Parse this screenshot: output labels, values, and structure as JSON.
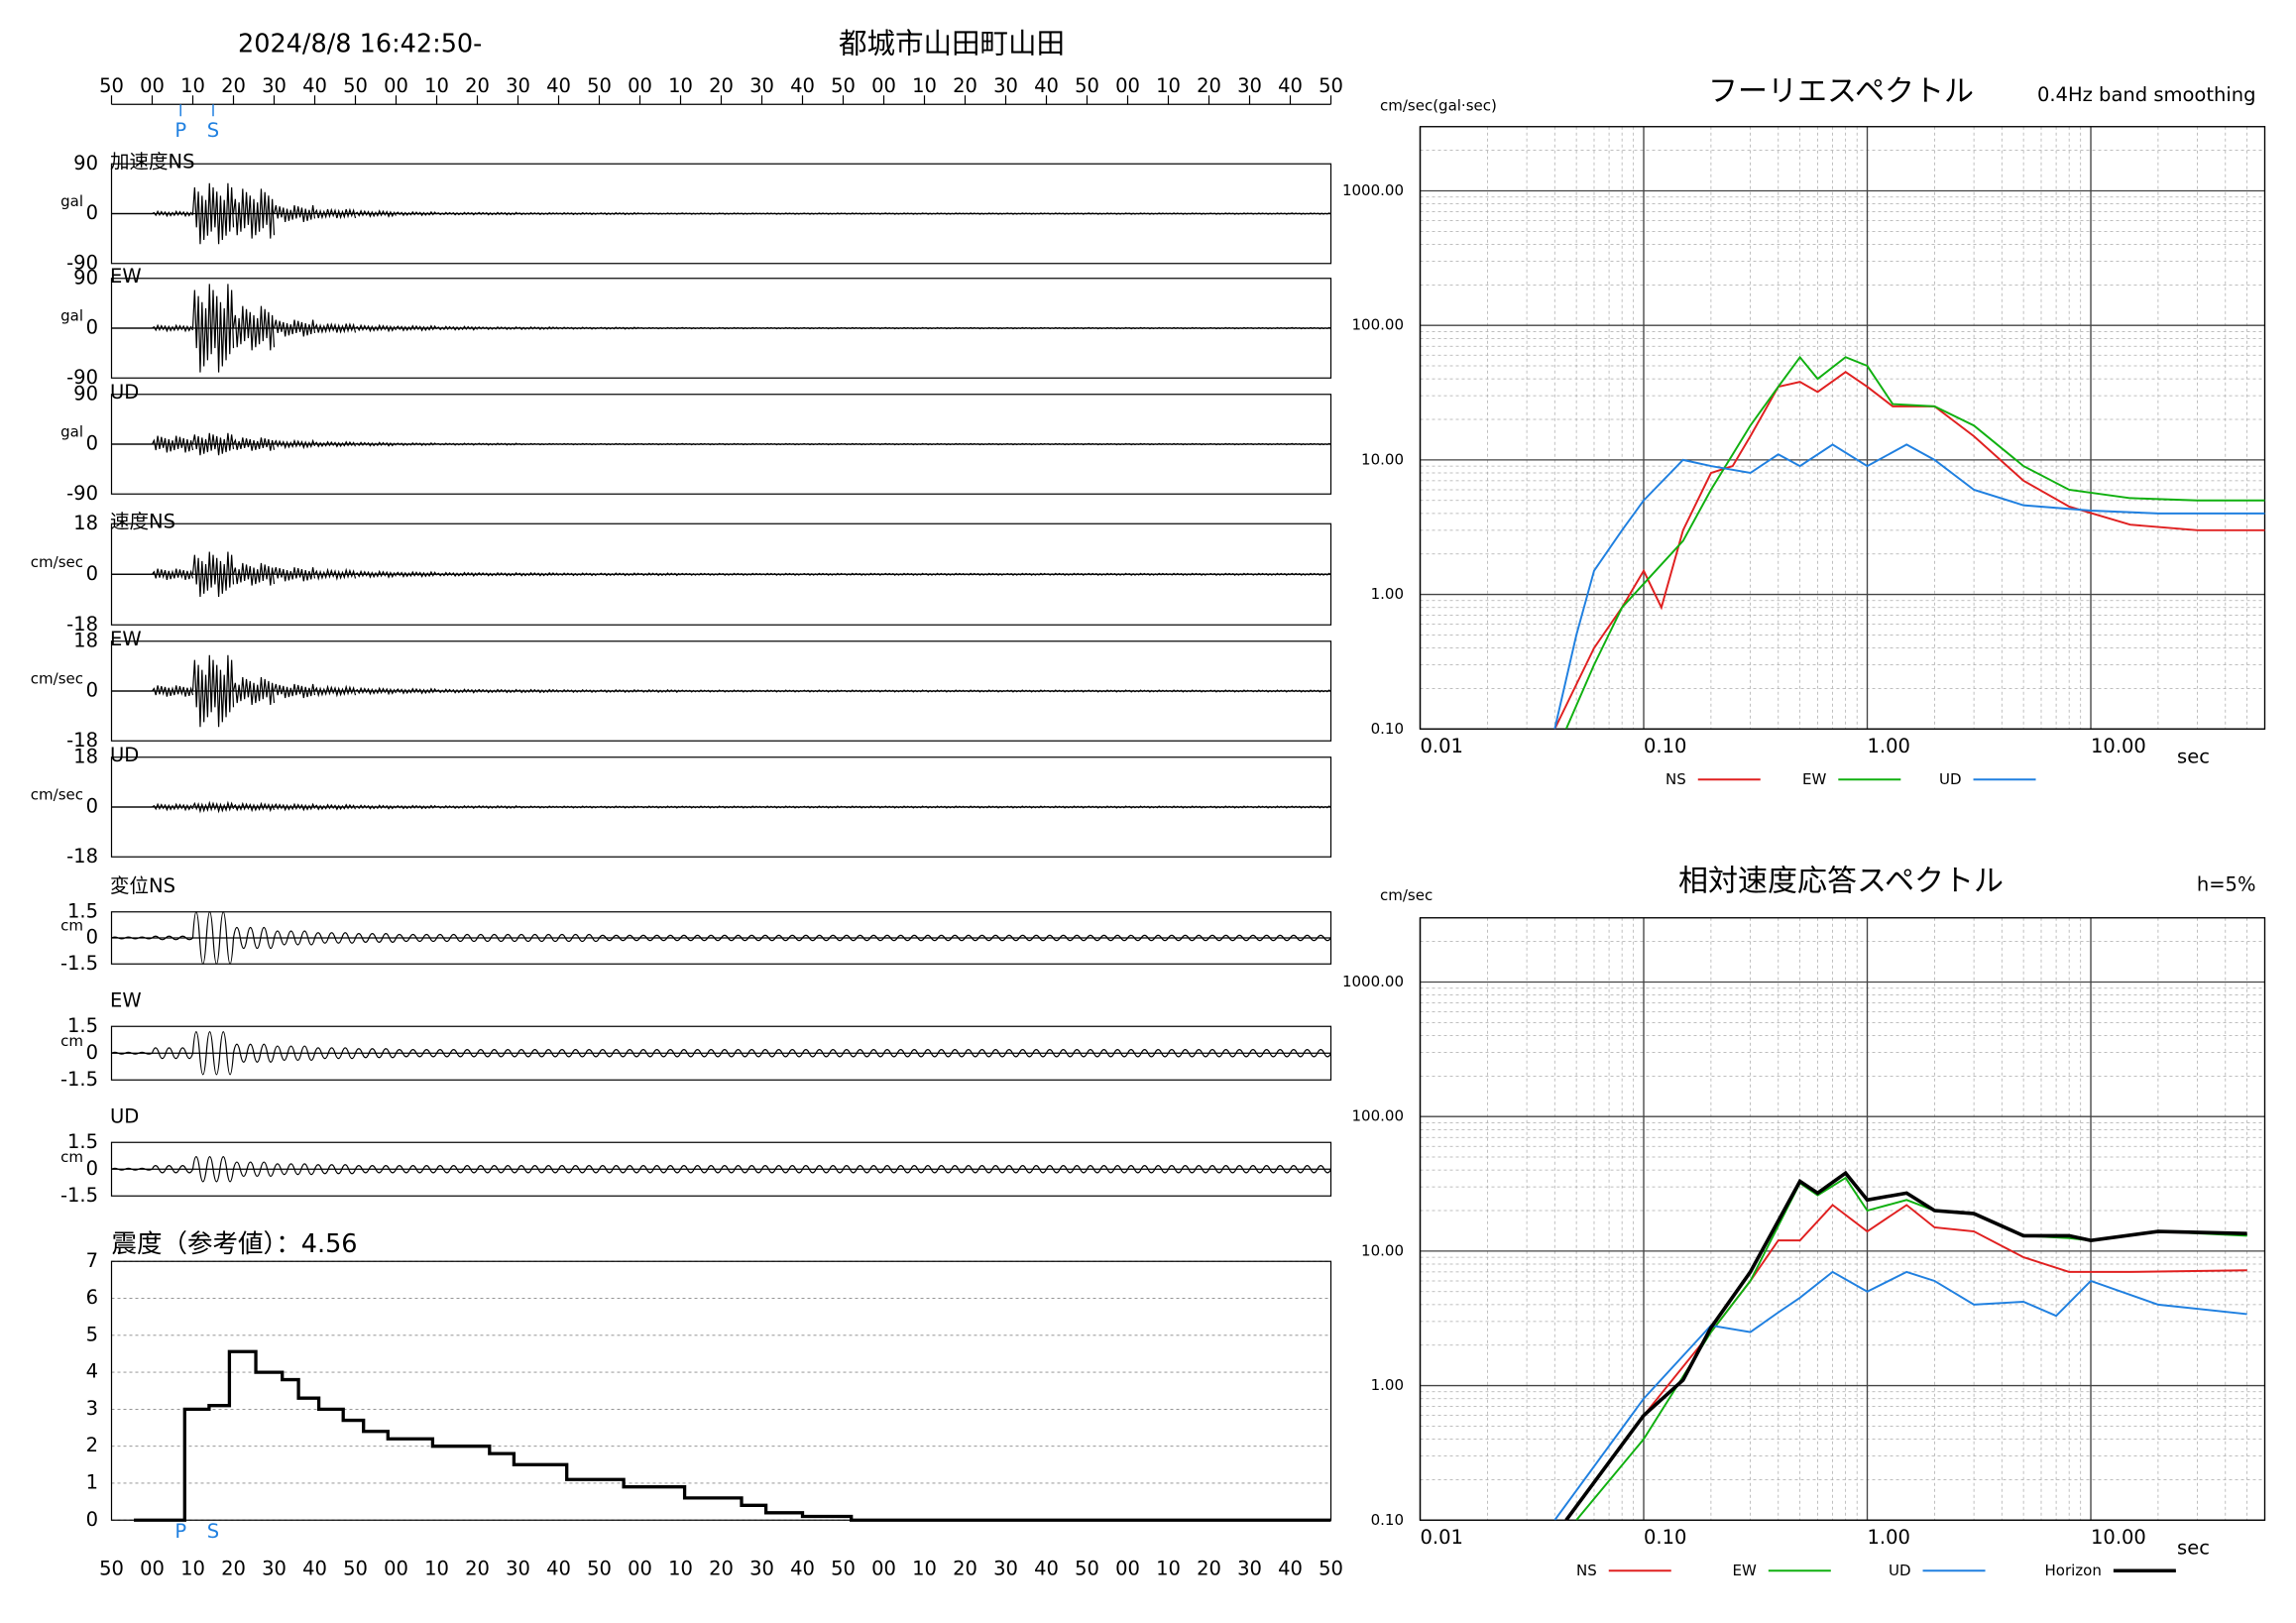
{
  "chart_data": [
    {
      "type": "waveform",
      "title": "2024/8/8 16:42:50-",
      "subtitle": "都城市山田町山田",
      "xlim": [
        0,
        300
      ],
      "xticks": [
        {
          "value": 0,
          "label": "50"
        },
        {
          "value": 10,
          "label": "00"
        },
        {
          "value": 20,
          "label": "10"
        },
        {
          "value": 30,
          "label": "20"
        },
        {
          "value": 40,
          "label": "30"
        },
        {
          "value": 50,
          "label": "40"
        },
        {
          "value": 60,
          "label": "50"
        },
        {
          "value": 70,
          "label": "00"
        },
        {
          "value": 80,
          "label": "10"
        },
        {
          "value": 90,
          "label": "20"
        },
        {
          "value": 100,
          "label": "30"
        },
        {
          "value": 110,
          "label": "40"
        },
        {
          "value": 120,
          "label": "50"
        },
        {
          "value": 130,
          "label": "00"
        },
        {
          "value": 140,
          "label": "10"
        },
        {
          "value": 150,
          "label": "20"
        },
        {
          "value": 160,
          "label": "30"
        },
        {
          "value": 170,
          "label": "40"
        },
        {
          "value": 180,
          "label": "50"
        },
        {
          "value": 190,
          "label": "00"
        },
        {
          "value": 200,
          "label": "10"
        },
        {
          "value": 210,
          "label": "20"
        },
        {
          "value": 220,
          "label": "30"
        },
        {
          "value": 230,
          "label": "40"
        },
        {
          "value": 240,
          "label": "50"
        },
        {
          "value": 250,
          "label": "00"
        },
        {
          "value": 260,
          "label": "10"
        },
        {
          "value": 270,
          "label": "20"
        },
        {
          "value": 280,
          "label": "30"
        },
        {
          "value": 290,
          "label": "40"
        },
        {
          "value": 300,
          "label": "50"
        }
      ],
      "phases": [
        {
          "label": "P",
          "value": 17
        },
        {
          "label": "S",
          "value": 25
        }
      ],
      "traces": [
        {
          "name": "加速度NS",
          "unit": "gal",
          "ylim": [
            -90,
            90
          ],
          "yticks": [
            90,
            0,
            -90
          ],
          "values": [
            0,
            4,
            55,
            45,
            15,
            8,
            5,
            3,
            2,
            2,
            1.5,
            1.5,
            1.5,
            1,
            1,
            1,
            1,
            1,
            1,
            1,
            1,
            1,
            1,
            1,
            1,
            1,
            1,
            1,
            1,
            1
          ]
        },
        {
          "name": "EW",
          "unit": "gal",
          "ylim": [
            -90,
            90
          ],
          "yticks": [
            90,
            0,
            -90
          ],
          "values": [
            0,
            5,
            80,
            40,
            15,
            8,
            5,
            4,
            3,
            2,
            2,
            1.5,
            1.5,
            1,
            1,
            1,
            1,
            1,
            1,
            1,
            1,
            1,
            1,
            1,
            1,
            1,
            1,
            1,
            1,
            1
          ]
        },
        {
          "name": "UD",
          "unit": "gal",
          "ylim": [
            -90,
            90
          ],
          "yticks": [
            90,
            0,
            -90
          ],
          "values": [
            0,
            15,
            20,
            12,
            6,
            4,
            3,
            2,
            1.5,
            1.5,
            1,
            1,
            1,
            1,
            1,
            1,
            1,
            1,
            1,
            1,
            1,
            1,
            1,
            1,
            1,
            1,
            1,
            1,
            1,
            1
          ]
        },
        {
          "name": "速度NS",
          "unit": "cm/sec",
          "ylim": [
            -18,
            18
          ],
          "yticks": [
            18,
            0,
            -18
          ],
          "values": [
            0,
            2,
            8,
            4,
            2.5,
            1.5,
            1,
            0.8,
            0.6,
            0.5,
            0.5,
            0.4,
            0.4,
            0.4,
            0.3,
            0.3,
            0.3,
            0.3,
            0.3,
            0.3,
            0.3,
            0.3,
            0.3,
            0.3,
            0.3,
            0.3,
            0.3,
            0.3,
            0.3,
            0.3
          ]
        },
        {
          "name": "EW",
          "unit": "cm/sec",
          "ylim": [
            -18,
            18
          ],
          "yticks": [
            18,
            0,
            -18
          ],
          "values": [
            0,
            2,
            13,
            5,
            2.5,
            1.5,
            1,
            0.8,
            0.6,
            0.5,
            0.5,
            0.4,
            0.4,
            0.4,
            0.3,
            0.3,
            0.3,
            0.3,
            0.3,
            0.3,
            0.3,
            0.3,
            0.3,
            0.3,
            0.3,
            0.3,
            0.3,
            0.3,
            0.3,
            0.3
          ]
        },
        {
          "name": "UD",
          "unit": "cm/sec",
          "ylim": [
            -18,
            18
          ],
          "yticks": [
            18,
            0,
            -18
          ],
          "values": [
            0,
            1,
            1.5,
            1.2,
            1,
            0.8,
            0.6,
            0.5,
            0.4,
            0.4,
            0.3,
            0.3,
            0.3,
            0.3,
            0.3,
            0.3,
            0.3,
            0.3,
            0.3,
            0.3,
            0.3,
            0.3,
            0.3,
            0.3,
            0.3,
            0.3,
            0.3,
            0.3,
            0.3,
            0.3
          ]
        },
        {
          "name": "変位NS",
          "unit": "cm",
          "ylim": [
            -1.5,
            1.5
          ],
          "yticks": [
            1.5,
            0,
            -1.5
          ],
          "values": [
            0.05,
            0.1,
            1.5,
            0.6,
            0.4,
            0.3,
            0.25,
            0.2,
            0.2,
            0.2,
            0.2,
            0.2,
            0.15,
            0.15,
            0.15,
            0.15,
            0.15,
            0.15,
            0.15,
            0.15,
            0.15,
            0.15,
            0.15,
            0.15,
            0.15,
            0.15,
            0.15,
            0.15,
            0.15,
            0.15
          ]
        },
        {
          "name": "EW",
          "unit": "cm",
          "ylim": [
            -1.5,
            1.5
          ],
          "yticks": [
            1.5,
            0,
            -1.5
          ],
          "values": [
            0.05,
            0.3,
            1.2,
            0.5,
            0.4,
            0.3,
            0.25,
            0.2,
            0.2,
            0.2,
            0.2,
            0.2,
            0.2,
            0.2,
            0.2,
            0.2,
            0.2,
            0.2,
            0.2,
            0.2,
            0.2,
            0.2,
            0.2,
            0.2,
            0.2,
            0.2,
            0.2,
            0.2,
            0.2,
            0.2
          ]
        },
        {
          "name": "UD",
          "unit": "cm",
          "ylim": [
            -1.5,
            1.5
          ],
          "yticks": [
            1.5,
            0,
            -1.5
          ],
          "values": [
            0.05,
            0.2,
            0.7,
            0.4,
            0.3,
            0.25,
            0.2,
            0.2,
            0.2,
            0.2,
            0.2,
            0.2,
            0.2,
            0.2,
            0.2,
            0.2,
            0.2,
            0.2,
            0.2,
            0.2,
            0.2,
            0.2,
            0.2,
            0.2,
            0.2,
            0.2,
            0.2,
            0.2,
            0.2,
            0.2
          ]
        }
      ]
    },
    {
      "type": "step",
      "title": "震度（参考値）：4.56",
      "color": "#000000",
      "grid": true,
      "x": [
        5.5,
        18,
        24,
        29,
        35.5,
        42,
        46,
        51,
        57,
        62,
        68,
        79,
        93,
        99,
        112,
        126,
        141,
        155,
        161,
        170,
        182,
        300
      ],
      "values": [
        0,
        3.0,
        3.1,
        4.56,
        4.0,
        3.8,
        3.3,
        3.0,
        2.7,
        2.4,
        2.2,
        2.0,
        1.8,
        1.5,
        1.1,
        0.9,
        0.6,
        0.4,
        0.2,
        0.1,
        0,
        0
      ],
      "ylim": [
        0,
        7
      ],
      "yticks": [
        0,
        1,
        2,
        3,
        4,
        5,
        6,
        7
      ],
      "xlim": [
        0,
        300
      ],
      "xticks": [
        {
          "value": 0,
          "label": "50"
        },
        {
          "value": 10,
          "label": "00"
        },
        {
          "value": 20,
          "label": "10"
        },
        {
          "value": 30,
          "label": "20"
        },
        {
          "value": 40,
          "label": "30"
        },
        {
          "value": 50,
          "label": "40"
        },
        {
          "value": 60,
          "label": "50"
        },
        {
          "value": 70,
          "label": "00"
        },
        {
          "value": 80,
          "label": "10"
        },
        {
          "value": 90,
          "label": "20"
        },
        {
          "value": 100,
          "label": "30"
        },
        {
          "value": 110,
          "label": "40"
        },
        {
          "value": 120,
          "label": "50"
        },
        {
          "value": 130,
          "label": "00"
        },
        {
          "value": 140,
          "label": "10"
        },
        {
          "value": 150,
          "label": "20"
        },
        {
          "value": 160,
          "label": "30"
        },
        {
          "value": 170,
          "label": "40"
        },
        {
          "value": 180,
          "label": "50"
        },
        {
          "value": 190,
          "label": "00"
        },
        {
          "value": 200,
          "label": "10"
        },
        {
          "value": 210,
          "label": "20"
        },
        {
          "value": 220,
          "label": "30"
        },
        {
          "value": 230,
          "label": "40"
        },
        {
          "value": 240,
          "label": "50"
        },
        {
          "value": 250,
          "label": "00"
        },
        {
          "value": 260,
          "label": "10"
        },
        {
          "value": 270,
          "label": "20"
        },
        {
          "value": 280,
          "label": "30"
        },
        {
          "value": 290,
          "label": "40"
        },
        {
          "value": 300,
          "label": "50"
        }
      ],
      "phases": [
        {
          "label": "P",
          "value": 17
        },
        {
          "label": "S",
          "value": 25
        }
      ]
    },
    {
      "type": "line",
      "log_scale": true,
      "minor_grid": true,
      "title": "フーリエスペクトル",
      "subtitle": "0.4Hz band smoothing",
      "ylabel": "cm/sec(gal·sec)",
      "xlabel": "sec",
      "xlim": [
        0.01,
        60
      ],
      "ylim": [
        0.1,
        3000
      ],
      "xticks": [
        {
          "value": 0.01,
          "label": "0.01"
        },
        {
          "value": 0.1,
          "label": "0.10"
        },
        {
          "value": 1,
          "label": "1.00"
        },
        {
          "value": 10,
          "label": "10.00"
        }
      ],
      "yticks": [
        {
          "value": 0.1,
          "label": "0.10"
        },
        {
          "value": 1,
          "label": "1.00"
        },
        {
          "value": 10,
          "label": "10.00"
        },
        {
          "value": 100,
          "label": "100.00"
        },
        {
          "value": 1000,
          "label": "1000.00"
        }
      ],
      "series": [
        {
          "name": "NS",
          "color": "#e02020",
          "x": [
            0.04,
            0.06,
            0.08,
            0.1,
            0.12,
            0.15,
            0.2,
            0.25,
            0.3,
            0.4,
            0.5,
            0.6,
            0.8,
            1.0,
            1.3,
            2.0,
            3,
            5,
            8,
            15,
            30,
            60
          ],
          "values": [
            0.1,
            0.4,
            0.8,
            1.5,
            0.8,
            3,
            8,
            9,
            15,
            35,
            38,
            32,
            45,
            35,
            25,
            25,
            15,
            7,
            4.5,
            3.3,
            3,
            3
          ]
        },
        {
          "name": "EW",
          "color": "#10b010",
          "x": [
            0.045,
            0.06,
            0.08,
            0.1,
            0.15,
            0.2,
            0.3,
            0.4,
            0.5,
            0.6,
            0.8,
            1.0,
            1.3,
            2.0,
            3,
            5,
            8,
            15,
            30,
            60
          ],
          "values": [
            0.1,
            0.3,
            0.8,
            1.2,
            2.5,
            6,
            18,
            35,
            58,
            40,
            58,
            50,
            26,
            25,
            18,
            9,
            6,
            5.2,
            5,
            5
          ]
        },
        {
          "name": "UD",
          "color": "#2080e0",
          "x": [
            0.04,
            0.05,
            0.06,
            0.08,
            0.1,
            0.15,
            0.2,
            0.3,
            0.4,
            0.5,
            0.7,
            1.0,
            1.5,
            2.0,
            3,
            5,
            10,
            20,
            60
          ],
          "values": [
            0.1,
            0.5,
            1.5,
            3,
            5,
            10,
            9,
            8,
            11,
            9,
            13,
            9,
            13,
            10,
            6,
            4.6,
            4.2,
            4,
            4
          ]
        }
      ]
    },
    {
      "type": "line",
      "log_scale": true,
      "minor_grid": true,
      "title": "相対速度応答スペクトル",
      "subtitle": "h=5%",
      "ylabel": "cm/sec",
      "xlabel": "sec",
      "xlim": [
        0.01,
        60
      ],
      "ylim": [
        0.1,
        3000
      ],
      "xticks": [
        {
          "value": 0.01,
          "label": "0.01"
        },
        {
          "value": 0.1,
          "label": "0.10"
        },
        {
          "value": 1,
          "label": "1.00"
        },
        {
          "value": 10,
          "label": "10.00"
        }
      ],
      "yticks": [
        {
          "value": 0.1,
          "label": "0.10"
        },
        {
          "value": 1,
          "label": "1.00"
        },
        {
          "value": 10,
          "label": "10.00"
        },
        {
          "value": 100,
          "label": "100.00"
        },
        {
          "value": 1000,
          "label": "1000.00"
        }
      ],
      "series": [
        {
          "name": "NS",
          "color": "#e02020",
          "x": [
            0.045,
            0.1,
            0.2,
            0.3,
            0.4,
            0.5,
            0.7,
            1.0,
            1.5,
            2.0,
            3,
            5,
            8,
            15,
            50
          ],
          "values": [
            0.1,
            0.6,
            2.5,
            6,
            12,
            12,
            22,
            14,
            22,
            15,
            14,
            9,
            7,
            7,
            7.2
          ]
        },
        {
          "name": "EW",
          "color": "#10b010",
          "x": [
            0.05,
            0.1,
            0.2,
            0.3,
            0.5,
            0.6,
            0.8,
            1.0,
            1.5,
            2,
            3,
            5,
            8,
            10,
            20,
            50
          ],
          "values": [
            0.1,
            0.4,
            2.5,
            6,
            32,
            26,
            35,
            20,
            24,
            20,
            19,
            13,
            12.5,
            12,
            14,
            13
          ]
        },
        {
          "name": "UD",
          "color": "#2080e0",
          "x": [
            0.04,
            0.1,
            0.2,
            0.3,
            0.4,
            0.5,
            0.7,
            1.0,
            1.5,
            2,
            3,
            5,
            7,
            10,
            20,
            50
          ],
          "values": [
            0.1,
            0.8,
            2.8,
            2.5,
            3.5,
            4.5,
            7,
            5,
            7,
            6,
            4,
            4.2,
            3.3,
            6,
            4,
            3.4
          ]
        },
        {
          "name": "Horizon",
          "color": "#000000",
          "x": [
            0.045,
            0.1,
            0.15,
            0.2,
            0.3,
            0.5,
            0.6,
            0.8,
            1.0,
            1.5,
            2,
            3,
            5,
            8,
            10,
            20,
            50
          ],
          "values": [
            0.1,
            0.6,
            1.1,
            2.7,
            7,
            33,
            27,
            38,
            24,
            27,
            20,
            19,
            13,
            13,
            12,
            14,
            13.5
          ]
        }
      ]
    }
  ]
}
